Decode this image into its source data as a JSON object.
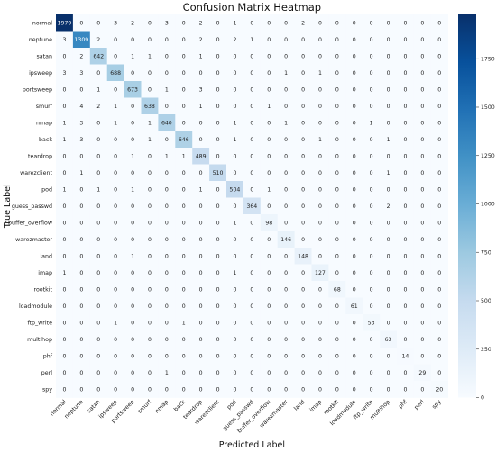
{
  "chart_data": {
    "type": "heatmap",
    "title": "Confusion Matrix Heatmap",
    "xlabel": "Predicted Label",
    "ylabel": "True Label",
    "labels": [
      "normal",
      "neptune",
      "satan",
      "ipsweep",
      "portsweep",
      "smurf",
      "nmap",
      "back",
      "teardrop",
      "warezclient",
      "pod",
      "guess_passwd",
      "buffer_overflow",
      "warezmaster",
      "land",
      "imap",
      "rootkit",
      "loadmodule",
      "ftp_write",
      "multihop",
      "phf",
      "perl",
      "spy"
    ],
    "matrix": [
      [
        1979,
        0,
        0,
        3,
        2,
        0,
        3,
        0,
        2,
        0,
        1,
        0,
        0,
        0,
        2,
        0,
        0,
        0,
        0,
        0,
        0,
        0,
        0
      ],
      [
        3,
        1309,
        2,
        0,
        0,
        0,
        0,
        0,
        2,
        0,
        2,
        1,
        0,
        0,
        0,
        0,
        0,
        0,
        0,
        0,
        0,
        0,
        0
      ],
      [
        0,
        2,
        642,
        0,
        1,
        1,
        0,
        0,
        1,
        0,
        0,
        0,
        0,
        0,
        0,
        0,
        0,
        0,
        0,
        0,
        0,
        0,
        0
      ],
      [
        3,
        3,
        0,
        688,
        0,
        0,
        0,
        0,
        0,
        0,
        0,
        0,
        0,
        1,
        0,
        1,
        0,
        0,
        0,
        0,
        0,
        0,
        0
      ],
      [
        0,
        0,
        1,
        0,
        673,
        0,
        1,
        0,
        3,
        0,
        0,
        0,
        0,
        0,
        0,
        0,
        0,
        0,
        0,
        0,
        0,
        0,
        0
      ],
      [
        0,
        4,
        2,
        1,
        0,
        638,
        0,
        0,
        1,
        0,
        0,
        0,
        1,
        0,
        0,
        0,
        0,
        0,
        0,
        0,
        0,
        0,
        0
      ],
      [
        1,
        3,
        0,
        1,
        0,
        1,
        640,
        0,
        0,
        0,
        1,
        0,
        0,
        1,
        0,
        0,
        0,
        0,
        1,
        0,
        0,
        0,
        0
      ],
      [
        1,
        3,
        0,
        0,
        0,
        1,
        0,
        646,
        0,
        0,
        1,
        0,
        0,
        0,
        0,
        1,
        0,
        0,
        0,
        1,
        0,
        0,
        0
      ],
      [
        0,
        0,
        0,
        0,
        1,
        0,
        1,
        1,
        489,
        0,
        0,
        0,
        0,
        0,
        0,
        0,
        0,
        0,
        0,
        0,
        0,
        0,
        0
      ],
      [
        0,
        1,
        0,
        0,
        0,
        0,
        0,
        0,
        0,
        510,
        0,
        0,
        0,
        0,
        0,
        0,
        0,
        0,
        0,
        1,
        0,
        0,
        0
      ],
      [
        1,
        0,
        1,
        0,
        1,
        0,
        0,
        0,
        1,
        0,
        504,
        0,
        1,
        0,
        0,
        0,
        0,
        0,
        0,
        0,
        0,
        0,
        0
      ],
      [
        0,
        0,
        0,
        0,
        0,
        0,
        0,
        0,
        0,
        0,
        0,
        364,
        0,
        0,
        0,
        0,
        0,
        0,
        0,
        2,
        0,
        0,
        0
      ],
      [
        0,
        0,
        0,
        0,
        0,
        0,
        0,
        0,
        0,
        0,
        1,
        0,
        98,
        0,
        0,
        0,
        0,
        0,
        0,
        0,
        0,
        0,
        0
      ],
      [
        0,
        0,
        0,
        0,
        0,
        0,
        0,
        0,
        0,
        0,
        0,
        0,
        0,
        146,
        0,
        0,
        0,
        0,
        0,
        0,
        0,
        0,
        0
      ],
      [
        0,
        0,
        0,
        0,
        1,
        0,
        0,
        0,
        0,
        0,
        0,
        0,
        0,
        0,
        148,
        0,
        0,
        0,
        0,
        0,
        0,
        0,
        0
      ],
      [
        1,
        0,
        0,
        0,
        0,
        0,
        0,
        0,
        0,
        0,
        1,
        0,
        0,
        0,
        0,
        127,
        0,
        0,
        0,
        0,
        0,
        0,
        0
      ],
      [
        0,
        0,
        0,
        0,
        0,
        0,
        0,
        0,
        0,
        0,
        0,
        0,
        0,
        0,
        0,
        0,
        68,
        0,
        0,
        0,
        0,
        0,
        0
      ],
      [
        0,
        0,
        0,
        0,
        0,
        0,
        0,
        0,
        0,
        0,
        0,
        0,
        0,
        0,
        0,
        0,
        0,
        61,
        0,
        0,
        0,
        0,
        0
      ],
      [
        0,
        0,
        0,
        1,
        0,
        0,
        0,
        1,
        0,
        0,
        0,
        0,
        0,
        0,
        0,
        0,
        0,
        0,
        53,
        0,
        0,
        0,
        0
      ],
      [
        0,
        0,
        0,
        0,
        0,
        0,
        0,
        0,
        0,
        0,
        0,
        0,
        0,
        0,
        0,
        0,
        0,
        0,
        0,
        63,
        0,
        0,
        0
      ],
      [
        0,
        0,
        0,
        0,
        0,
        0,
        0,
        0,
        0,
        0,
        0,
        0,
        0,
        0,
        0,
        0,
        0,
        0,
        0,
        0,
        14,
        0,
        0
      ],
      [
        0,
        0,
        0,
        0,
        0,
        0,
        1,
        0,
        0,
        0,
        0,
        0,
        0,
        0,
        0,
        0,
        0,
        0,
        0,
        0,
        0,
        29,
        0
      ],
      [
        0,
        0,
        0,
        0,
        0,
        0,
        0,
        0,
        0,
        0,
        0,
        0,
        0,
        0,
        0,
        0,
        0,
        0,
        0,
        0,
        0,
        0,
        20
      ]
    ],
    "colorbar": {
      "ticks": [
        0,
        250,
        500,
        750,
        1000,
        1250,
        1500,
        1750
      ],
      "range": [
        0,
        1979
      ],
      "colormap": "Blues",
      "low_color": "#f7fbff",
      "high_color": "#08306b"
    },
    "grid": false
  }
}
